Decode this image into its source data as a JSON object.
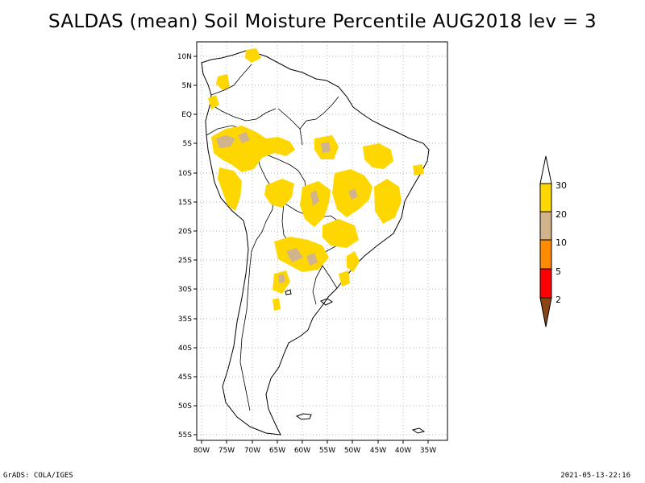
{
  "title": "SALDAS (mean) Soil Moisture Percentile AUG2018 lev = 3",
  "footer": {
    "left": "GrADS: COLA/IGES",
    "right": "2021-05-13-22:16"
  },
  "map": {
    "lat_ticks": [
      "10N",
      "5N",
      "EQ",
      "5S",
      "10S",
      "15S",
      "20S",
      "25S",
      "30S",
      "35S",
      "40S",
      "45S",
      "50S",
      "55S"
    ],
    "lon_ticks": [
      "80W",
      "75W",
      "70W",
      "65W",
      "60W",
      "55W",
      "50W",
      "45W",
      "40W",
      "35W"
    ],
    "region": "South America"
  },
  "legend": {
    "labels": [
      "2",
      "5",
      "10",
      "20",
      "30"
    ],
    "colors": {
      "below2": "#8b4513",
      "2to5": "#ff0000",
      "5to10": "#ff8c00",
      "10to20": "#d2b48c",
      "20to30": "#ffd700",
      "above30": "#ffffff"
    }
  }
}
